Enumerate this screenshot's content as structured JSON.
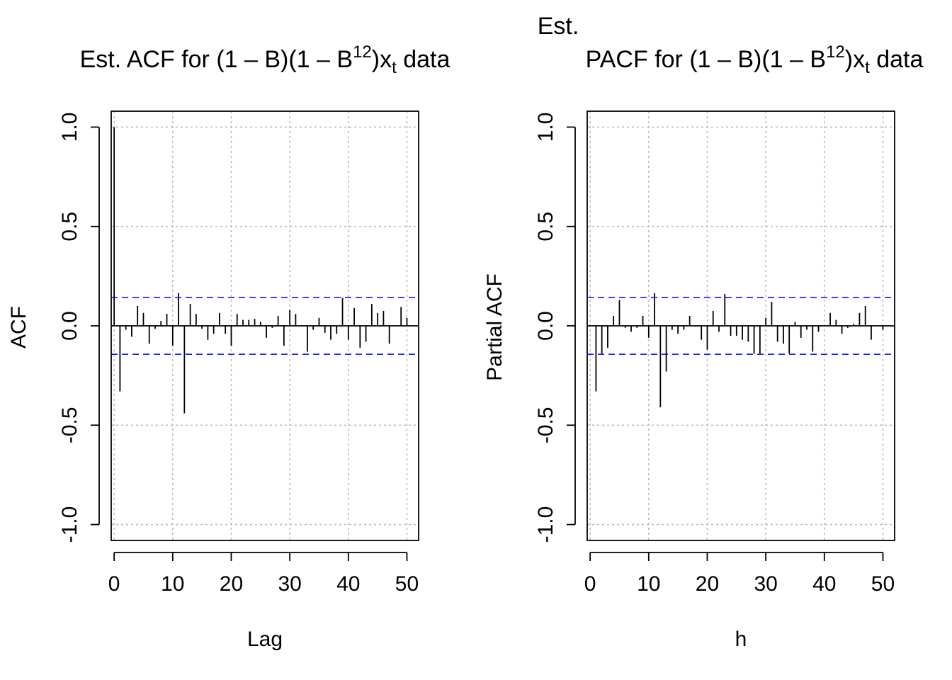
{
  "chart_data": [
    {
      "type": "bar",
      "title": {
        "prefix": "Est. ACF for ",
        "expr_a": "(1 – B)(1 – B",
        "expr_sup": "12",
        "expr_b": ")x",
        "expr_sub": "t",
        "suffix": " data"
      },
      "title_line1": "",
      "xlabel": "Lag",
      "ylabel": "ACF",
      "xlim": [
        -0.5,
        52
      ],
      "ylim": [
        -1.08,
        1.08
      ],
      "xticks": [
        "0",
        "10",
        "20",
        "30",
        "40",
        "50"
      ],
      "yticks": [
        "-1.0",
        "-0.5",
        "0.0",
        "0.5",
        "1.0"
      ],
      "grid": true,
      "confidence_band": 0.143,
      "band_color": "#0000ff",
      "x": [
        0,
        1,
        2,
        3,
        4,
        5,
        6,
        7,
        8,
        9,
        10,
        11,
        12,
        13,
        14,
        15,
        16,
        17,
        18,
        19,
        20,
        21,
        22,
        23,
        24,
        25,
        26,
        27,
        28,
        29,
        30,
        31,
        32,
        33,
        34,
        35,
        36,
        37,
        38,
        39,
        40,
        41,
        42,
        43,
        44,
        45,
        46,
        47,
        48,
        49,
        50
      ],
      "values": [
        1.0,
        -0.33,
        -0.02,
        -0.055,
        0.1,
        0.065,
        -0.09,
        -0.015,
        0.025,
        0.06,
        -0.1,
        0.165,
        -0.44,
        0.11,
        0.06,
        -0.015,
        -0.07,
        -0.04,
        0.065,
        -0.04,
        -0.1,
        0.06,
        0.03,
        0.03,
        0.035,
        0.02,
        -0.06,
        -0.01,
        0.05,
        -0.1,
        0.08,
        0.06,
        0.0,
        -0.13,
        -0.02,
        0.04,
        -0.035,
        -0.07,
        -0.04,
        0.14,
        -0.07,
        0.09,
        -0.11,
        -0.08,
        0.11,
        0.065,
        0.075,
        -0.09,
        0.0,
        0.095,
        0.04
      ]
    },
    {
      "type": "bar",
      "title": {
        "prefix": "PACF for ",
        "expr_a": "(1 – B)(1 – B",
        "expr_sup": "12",
        "expr_b": ")x",
        "expr_sub": "t",
        "suffix": " data"
      },
      "title_line1": "Est.",
      "xlabel": "h",
      "ylabel": "Partial ACF",
      "xlim": [
        -0.5,
        52
      ],
      "ylim": [
        -1.08,
        1.08
      ],
      "xticks": [
        "0",
        "10",
        "20",
        "30",
        "40",
        "50"
      ],
      "yticks": [
        "-1.0",
        "-0.5",
        "0.0",
        "0.5",
        "1.0"
      ],
      "grid": true,
      "confidence_band": 0.143,
      "band_color": "#0000ff",
      "x": [
        1,
        2,
        3,
        4,
        5,
        6,
        7,
        8,
        9,
        10,
        11,
        12,
        13,
        14,
        15,
        16,
        17,
        18,
        19,
        20,
        21,
        22,
        23,
        24,
        25,
        26,
        27,
        28,
        29,
        30,
        31,
        32,
        33,
        34,
        35,
        36,
        37,
        38,
        39,
        40,
        41,
        42,
        43,
        44,
        45,
        46,
        47,
        48,
        49,
        50
      ],
      "values": [
        -0.33,
        -0.14,
        -0.11,
        0.05,
        0.13,
        -0.01,
        -0.03,
        -0.01,
        0.05,
        -0.06,
        0.165,
        -0.41,
        -0.23,
        -0.02,
        -0.04,
        -0.02,
        0.05,
        0.0,
        -0.07,
        -0.12,
        0.075,
        -0.03,
        0.16,
        -0.05,
        -0.05,
        -0.07,
        -0.08,
        -0.14,
        -0.14,
        0.04,
        0.12,
        -0.08,
        -0.09,
        -0.14,
        0.02,
        -0.06,
        -0.02,
        -0.13,
        -0.03,
        0.0,
        0.065,
        0.03,
        -0.04,
        -0.01,
        0.01,
        0.065,
        0.1,
        -0.07,
        0.0,
        -0.02
      ]
    }
  ]
}
